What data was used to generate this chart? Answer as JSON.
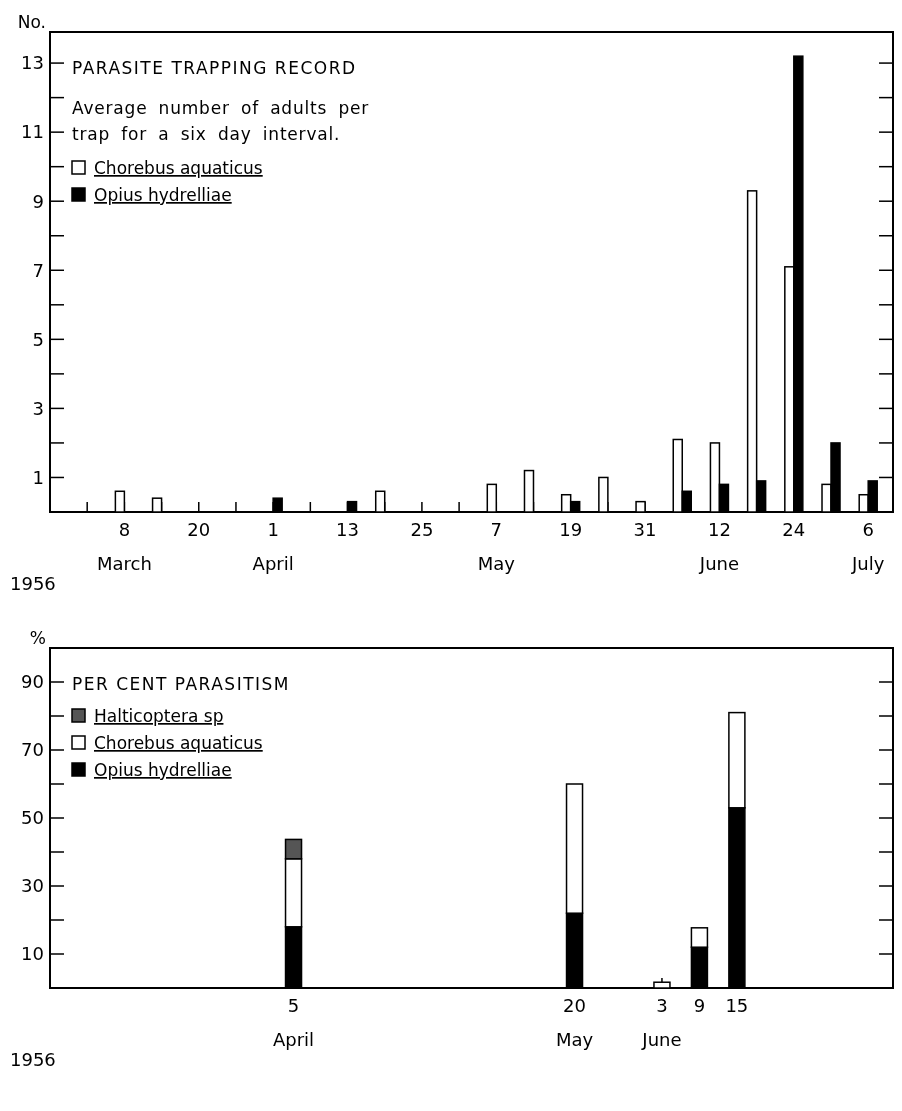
{
  "chart_data": [
    {
      "type": "bar",
      "title": "PARASITE TRAPPING RECORD",
      "subtitle": "Average number of adults per trap for a six day interval.",
      "ylabel": "No.",
      "xlabel": "1956",
      "x": [
        "1956-03-08",
        "1956-03-14",
        "1956-04-01",
        "1956-04-13",
        "1956-04-19",
        "1956-05-07",
        "1956-05-13",
        "1956-05-19",
        "1956-05-25",
        "1956-05-31",
        "1956-06-06",
        "1956-06-12",
        "1956-06-18",
        "1956-06-24",
        "1956-06-30",
        "1956-07-06"
      ],
      "series": [
        {
          "name": "Chorebus aquaticus",
          "color": "#ffffff",
          "values": [
            0.6,
            0.4,
            null,
            null,
            0.6,
            0.8,
            1.2,
            0.5,
            1.0,
            0.3,
            2.1,
            2.0,
            9.3,
            7.1,
            0.8,
            0.5
          ]
        },
        {
          "name": "Opius hydrelliae",
          "color": "#000000",
          "values": [
            null,
            null,
            0.4,
            0.3,
            null,
            null,
            null,
            0.3,
            null,
            null,
            0.6,
            0.8,
            0.9,
            13.2,
            2.0,
            0.9
          ]
        }
      ],
      "xlim": [
        "1956-02-25",
        "1956-07-10"
      ],
      "xticks": [
        {
          "value": "1956-03-02",
          "label": null
        },
        {
          "value": "1956-03-08",
          "label": "8\nMarch"
        },
        {
          "value": "1956-03-14",
          "label": null
        },
        {
          "value": "1956-03-20",
          "label": "20"
        },
        {
          "value": "1956-03-26",
          "label": null
        },
        {
          "value": "1956-04-01",
          "label": "1\nApril"
        },
        {
          "value": "1956-04-07",
          "label": null
        },
        {
          "value": "1956-04-13",
          "label": "13"
        },
        {
          "value": "1956-04-19",
          "label": null
        },
        {
          "value": "1956-04-25",
          "label": "25"
        },
        {
          "value": "1956-05-01",
          "label": null
        },
        {
          "value": "1956-05-07",
          "label": "7\nMay"
        },
        {
          "value": "1956-05-13",
          "label": null
        },
        {
          "value": "1956-05-19",
          "label": "19"
        },
        {
          "value": "1956-05-25",
          "label": null
        },
        {
          "value": "1956-05-31",
          "label": "31"
        },
        {
          "value": "1956-06-06",
          "label": null
        },
        {
          "value": "1956-06-12",
          "label": "12\nJune"
        },
        {
          "value": "1956-06-18",
          "label": null
        },
        {
          "value": "1956-06-24",
          "label": "24"
        },
        {
          "value": "1956-06-30",
          "label": null
        },
        {
          "value": "1956-07-06",
          "label": "6\nJuly"
        }
      ],
      "ylim": [
        0,
        13.9
      ],
      "yticks": [
        1,
        {
          "value": 2,
          "label": null
        },
        3,
        {
          "value": 4,
          "label": null
        },
        5,
        {
          "value": 6,
          "label": null
        },
        7,
        {
          "value": 8,
          "label": null
        },
        9,
        {
          "value": 10,
          "label": null
        },
        11,
        {
          "value": 12,
          "label": null
        },
        13
      ],
      "grid": false,
      "legend": "top left"
    },
    {
      "type": "bar",
      "title": "PER CENT PARASITISM",
      "ylabel": "%",
      "xlabel": "1956",
      "stacked": true,
      "x": [
        "1956-04-05",
        "1956-05-20",
        "1956-06-03",
        "1956-06-09",
        "1956-06-15"
      ],
      "series": [
        {
          "name": "Opius hydrelliae",
          "color": "#000000",
          "values": [
            18,
            22,
            null,
            12,
            53
          ]
        },
        {
          "name": "Chorebus aquaticus",
          "color": "#ffffff",
          "values": [
            20,
            38,
            1.7,
            5.7,
            28
          ]
        },
        {
          "name": "Halticoptera sp",
          "color": "#555555",
          "values": [
            5.7,
            null,
            null,
            null,
            null
          ]
        }
      ],
      "xlim": [
        "1956-02-26",
        "1956-07-10"
      ],
      "xticks": [
        {
          "value": "1956-04-05",
          "label": "5\nApril"
        },
        {
          "value": "1956-05-20",
          "label": "20\nMay"
        },
        {
          "value": "1956-06-03",
          "label": "3\nJune"
        },
        {
          "value": "1956-06-09",
          "label": "9"
        },
        {
          "value": "1956-06-15",
          "label": "15"
        }
      ],
      "ylim": [
        0,
        100
      ],
      "yticks": [
        {
          "value": 10,
          "label": "10"
        },
        {
          "value": 20,
          "label": null
        },
        {
          "value": 30,
          "label": "30"
        },
        {
          "value": 40,
          "label": null
        },
        {
          "value": 50,
          "label": "50"
        },
        {
          "value": 60,
          "label": null
        },
        {
          "value": 70,
          "label": "70"
        },
        {
          "value": 80,
          "label": null
        },
        {
          "value": 90,
          "label": "90"
        }
      ],
      "grid": false,
      "legend": "top left"
    }
  ]
}
